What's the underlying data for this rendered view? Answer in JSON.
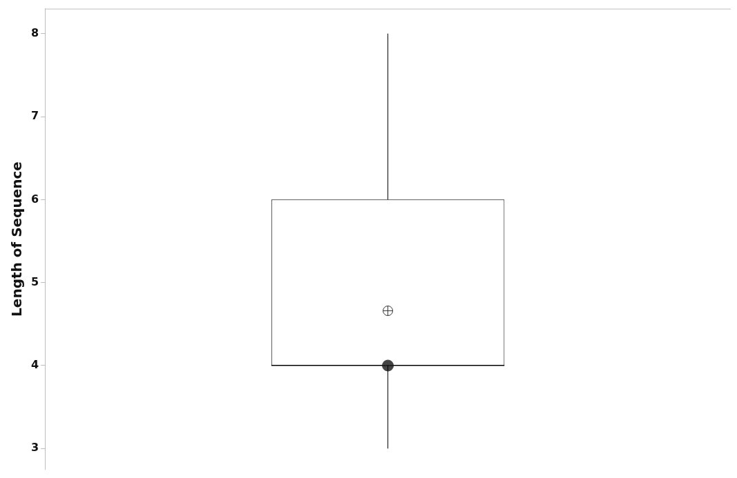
{
  "chart_data": {
    "type": "box",
    "ylabel": "Length of Sequence",
    "categories": [
      null
    ],
    "boxes": [
      {
        "low": 3,
        "q1": 4,
        "median": 4,
        "q3": 6,
        "high": 8,
        "mean": 4.66
      }
    ],
    "series": [
      {
        "type": "scatter",
        "color": "#444444",
        "values": [
          4
        ]
      }
    ],
    "ylim": [
      2.75,
      8.3
    ],
    "yticks": [
      3,
      4,
      5,
      6,
      7,
      8
    ]
  }
}
